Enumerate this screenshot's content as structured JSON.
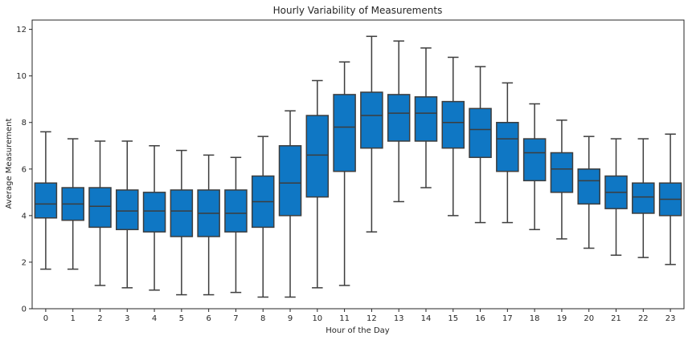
{
  "chart_data": {
    "type": "box",
    "title": "Hourly Variability of Measurements",
    "xlabel": "Hour of the Day",
    "ylabel": "Average Measurement",
    "ylim": [
      0,
      12.4
    ],
    "yticks": [
      0,
      2,
      4,
      6,
      8,
      10,
      12
    ],
    "box_color": "#0f77c4",
    "edge_color": "#3d3d3d",
    "categories": [
      "0",
      "1",
      "2",
      "3",
      "4",
      "5",
      "6",
      "7",
      "8",
      "9",
      "10",
      "11",
      "12",
      "13",
      "14",
      "15",
      "16",
      "17",
      "18",
      "19",
      "20",
      "21",
      "22",
      "23"
    ],
    "boxes": [
      {
        "whislo": 1.7,
        "q1": 3.9,
        "med": 4.5,
        "q3": 5.4,
        "whishi": 7.6
      },
      {
        "whislo": 1.7,
        "q1": 3.8,
        "med": 4.5,
        "q3": 5.2,
        "whishi": 7.3
      },
      {
        "whislo": 1.0,
        "q1": 3.5,
        "med": 4.4,
        "q3": 5.2,
        "whishi": 7.2
      },
      {
        "whislo": 0.9,
        "q1": 3.4,
        "med": 4.2,
        "q3": 5.1,
        "whishi": 7.2
      },
      {
        "whislo": 0.8,
        "q1": 3.3,
        "med": 4.2,
        "q3": 5.0,
        "whishi": 7.0
      },
      {
        "whislo": 0.6,
        "q1": 3.1,
        "med": 4.2,
        "q3": 5.1,
        "whishi": 6.8
      },
      {
        "whislo": 0.6,
        "q1": 3.1,
        "med": 4.1,
        "q3": 5.1,
        "whishi": 6.6
      },
      {
        "whislo": 0.7,
        "q1": 3.3,
        "med": 4.1,
        "q3": 5.1,
        "whishi": 6.5
      },
      {
        "whislo": 0.5,
        "q1": 3.5,
        "med": 4.6,
        "q3": 5.7,
        "whishi": 7.4
      },
      {
        "whislo": 0.5,
        "q1": 4.0,
        "med": 5.4,
        "q3": 7.0,
        "whishi": 8.5
      },
      {
        "whislo": 0.9,
        "q1": 4.8,
        "med": 6.6,
        "q3": 8.3,
        "whishi": 9.8
      },
      {
        "whislo": 1.0,
        "q1": 5.9,
        "med": 7.8,
        "q3": 9.2,
        "whishi": 10.6
      },
      {
        "whislo": 3.3,
        "q1": 6.9,
        "med": 8.3,
        "q3": 9.3,
        "whishi": 11.7
      },
      {
        "whislo": 4.6,
        "q1": 7.2,
        "med": 8.4,
        "q3": 9.2,
        "whishi": 11.5
      },
      {
        "whislo": 5.2,
        "q1": 7.2,
        "med": 8.4,
        "q3": 9.1,
        "whishi": 11.2
      },
      {
        "whislo": 4.0,
        "q1": 6.9,
        "med": 8.0,
        "q3": 8.9,
        "whishi": 10.8
      },
      {
        "whislo": 3.7,
        "q1": 6.5,
        "med": 7.7,
        "q3": 8.6,
        "whishi": 10.4
      },
      {
        "whislo": 3.7,
        "q1": 5.9,
        "med": 7.3,
        "q3": 8.0,
        "whishi": 9.7
      },
      {
        "whislo": 3.4,
        "q1": 5.5,
        "med": 6.7,
        "q3": 7.3,
        "whishi": 8.8
      },
      {
        "whislo": 3.0,
        "q1": 5.0,
        "med": 6.0,
        "q3": 6.7,
        "whishi": 8.1
      },
      {
        "whislo": 2.6,
        "q1": 4.5,
        "med": 5.5,
        "q3": 6.0,
        "whishi": 7.4
      },
      {
        "whislo": 2.3,
        "q1": 4.3,
        "med": 5.0,
        "q3": 5.7,
        "whishi": 7.3
      },
      {
        "whislo": 2.2,
        "q1": 4.1,
        "med": 4.8,
        "q3": 5.4,
        "whishi": 7.3
      },
      {
        "whislo": 1.9,
        "q1": 4.0,
        "med": 4.7,
        "q3": 5.4,
        "whishi": 7.5
      }
    ]
  }
}
